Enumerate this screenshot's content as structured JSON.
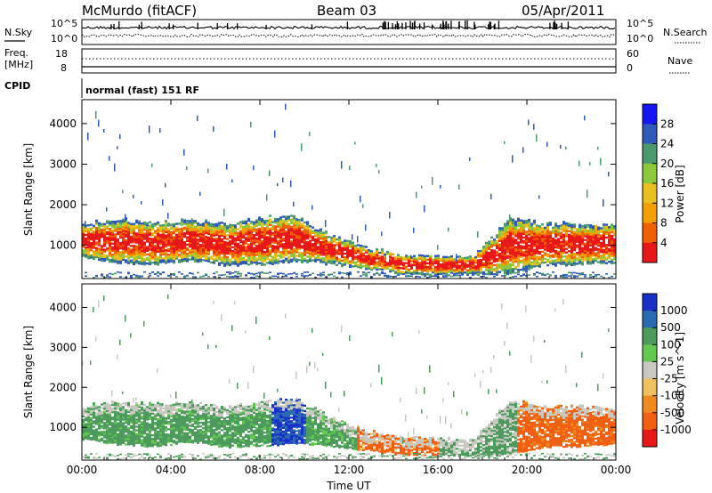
{
  "header": {
    "station": "McMurdo (fitACF)",
    "beam": "Beam 03",
    "date": "05/Apr/2011"
  },
  "noise_panel": {
    "left_label": "N.Sky",
    "right_label": "N.Search",
    "left_top_tick": "10^5",
    "left_bottom_tick": "10^0",
    "right_top_tick": "10^5",
    "right_bottom_tick": "10^0"
  },
  "freq_panel": {
    "left_label_line1": "Freq.",
    "left_label_line2": "[MHz]",
    "right_label": "Nave",
    "left_top_tick": "18",
    "left_bottom_tick": "8",
    "right_top_tick": "60",
    "right_bottom_tick": "0"
  },
  "cpid_panel": {
    "label": "CPID",
    "mode_text": "normal (fast) 151 RF"
  },
  "chart_data": [
    {
      "type": "heatmap",
      "panel": "power",
      "ylabel": "Slant Range [km]",
      "xlabel": "",
      "colorbar_label": "Power [dB]",
      "x_ticks": [
        "00:00",
        "04:00",
        "08:00",
        "12:00",
        "16:00",
        "20:00",
        "00:00"
      ],
      "y_ticks": [
        1000,
        2000,
        3000,
        4000
      ],
      "ylim": [
        180,
        4590
      ],
      "colorbar_ticks": [
        "4",
        "8",
        "12",
        "16",
        "20",
        "24",
        "28"
      ],
      "colorbar_colors": [
        "#1515f0",
        "#2f5ab8",
        "#4a9a6e",
        "#8cc83c",
        "#e8c020",
        "#f0a000",
        "#f06000",
        "#e81818"
      ],
      "scatter_band": {
        "upper_km": [
          1500,
          1620,
          1540,
          1600,
          1500,
          1640,
          1700,
          1200,
          900,
          750,
          700,
          700,
          1650,
          1500,
          1500,
          1450
        ],
        "lower_km": [
          700,
          560,
          520,
          620,
          500,
          520,
          600,
          520,
          420,
          300,
          280,
          280,
          300,
          500,
          520,
          560
        ]
      }
    },
    {
      "type": "heatmap",
      "panel": "velocity",
      "ylabel": "Slant Range [km]",
      "xlabel": "Time UT",
      "colorbar_label": "Velocity [m s^-1]",
      "x_ticks": [
        "00:00",
        "04:00",
        "08:00",
        "12:00",
        "16:00",
        "20:00",
        "00:00"
      ],
      "y_ticks": [
        1000,
        2000,
        3000,
        4000
      ],
      "ylim": [
        180,
        4590
      ],
      "colorbar_ticks": [
        "1000",
        "500",
        "100",
        "25",
        "-25",
        "-100",
        "-500",
        "-1000"
      ],
      "colorbar_colors": [
        "#1830c8",
        "#2a6ab0",
        "#4c9a5c",
        "#62c850",
        "#c8c8c0",
        "#f0c060",
        "#f08a20",
        "#f06010",
        "#e81818"
      ]
    }
  ]
}
